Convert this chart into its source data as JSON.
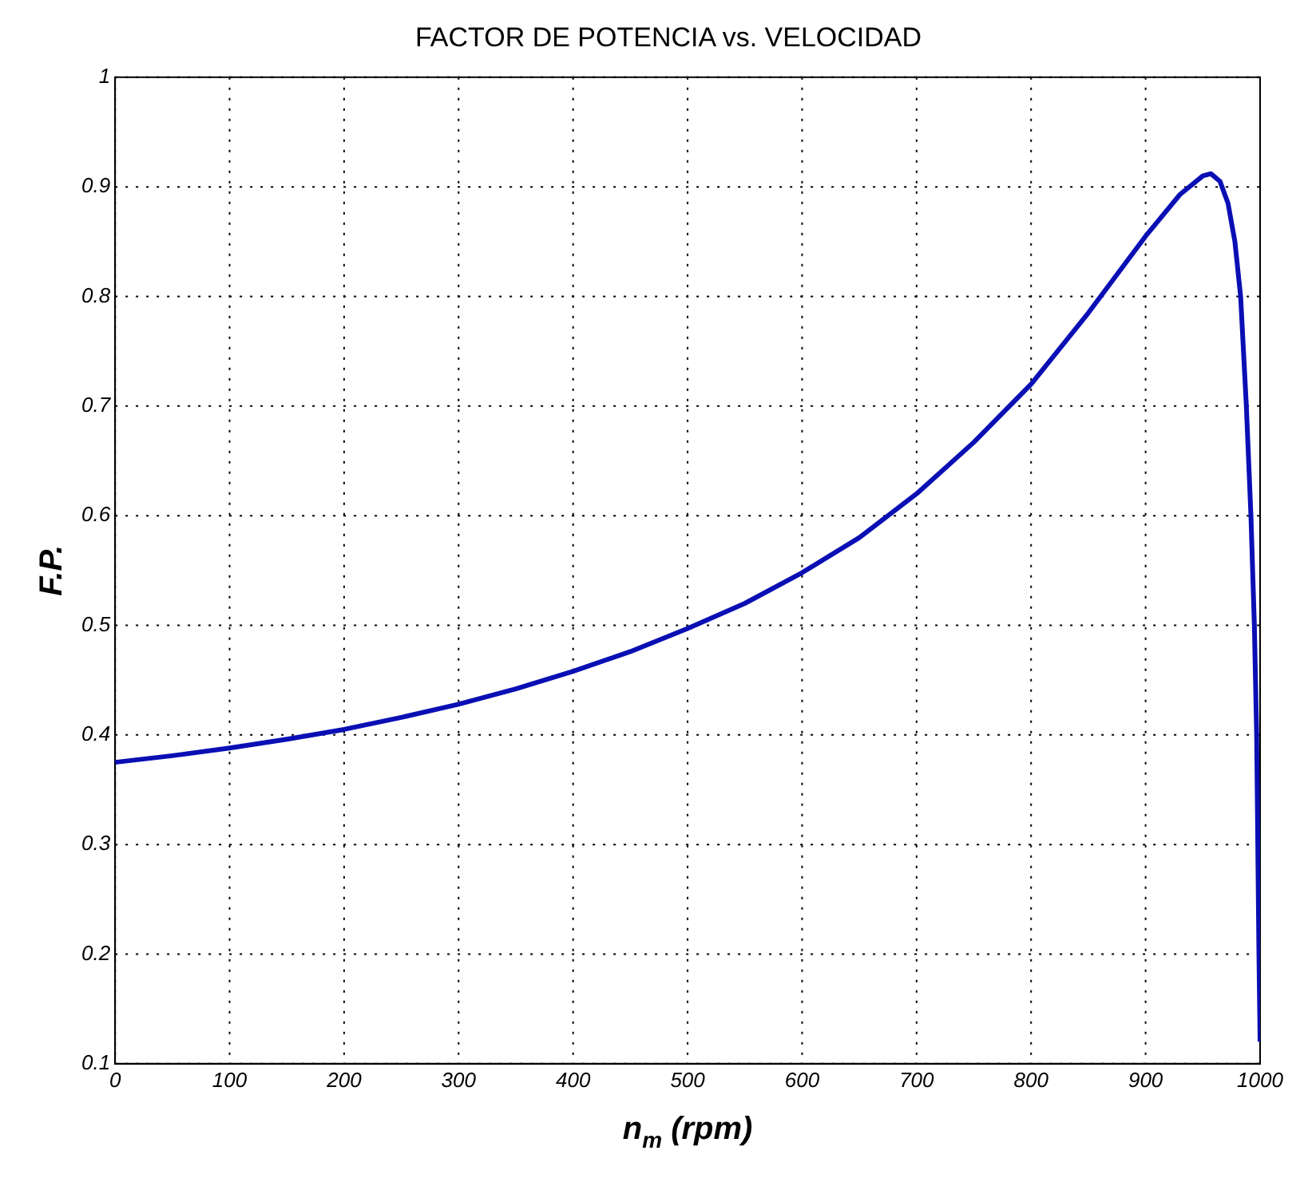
{
  "chart_data": {
    "type": "line",
    "title": "FACTOR DE POTENCIA vs. VELOCIDAD",
    "xlabel": "n$_{m}$ (rpm)",
    "ylabel": "F.P.",
    "series": [
      {
        "color": "#0a0fb4",
        "x": [
          0,
          50,
          100,
          150,
          200,
          250,
          300,
          350,
          400,
          450,
          500,
          550,
          600,
          650,
          700,
          750,
          800,
          850,
          900,
          930,
          950,
          957,
          965,
          972,
          978,
          983,
          988,
          992,
          995,
          997,
          998,
          999,
          1000
        ],
        "values": [
          0.375,
          0.381,
          0.388,
          0.396,
          0.405,
          0.416,
          0.428,
          0.442,
          0.458,
          0.476,
          0.497,
          0.52,
          0.548,
          0.58,
          0.62,
          0.667,
          0.72,
          0.785,
          0.855,
          0.893,
          0.91,
          0.912,
          0.905,
          0.885,
          0.85,
          0.8,
          0.7,
          0.6,
          0.5,
          0.4,
          0.3,
          0.2,
          0.12
        ]
      }
    ],
    "xlim": [
      0,
      1000
    ],
    "xticks": [
      0,
      100,
      200,
      300,
      400,
      500,
      600,
      700,
      800,
      900,
      1000
    ],
    "ylim": [
      0.1,
      1
    ],
    "yticks": [
      0.1,
      0.2,
      0.3,
      0.4,
      0.5,
      0.6,
      0.7,
      0.8,
      0.9,
      1
    ],
    "grid": true,
    "legend": false,
    "marker": "none",
    "line_style": "solid"
  }
}
